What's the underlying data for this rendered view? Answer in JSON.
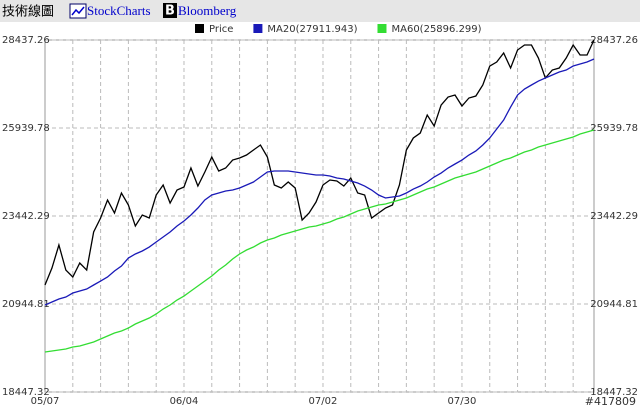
{
  "header": {
    "title": "技術線圖",
    "links": [
      "StockCharts",
      "Bloomberg"
    ]
  },
  "watermark": "#417809",
  "chart_data": {
    "type": "line",
    "categories": [
      "05/07",
      null,
      null,
      null,
      null,
      null,
      null,
      null,
      null,
      null,
      null,
      null,
      null,
      null,
      null,
      null,
      null,
      null,
      null,
      null,
      "06/04",
      null,
      null,
      null,
      null,
      null,
      null,
      null,
      null,
      null,
      null,
      null,
      null,
      null,
      null,
      null,
      null,
      null,
      null,
      null,
      "07/02",
      null,
      null,
      null,
      null,
      null,
      null,
      null,
      null,
      null,
      null,
      null,
      null,
      null,
      null,
      null,
      null,
      null,
      null,
      null,
      "07/30",
      null,
      null,
      null,
      null,
      null,
      null,
      null,
      null,
      null,
      null,
      null,
      null,
      null,
      null,
      null,
      null,
      null,
      null,
      null
    ],
    "series": [
      {
        "name": "Price",
        "color": "#000000",
        "values": [
          21484,
          21966,
          22619,
          21909,
          21711,
          22108,
          21909,
          22988,
          23385,
          23896,
          23527,
          24095,
          23754,
          23158,
          23470,
          23385,
          24038,
          24322,
          23811,
          24180,
          24265,
          24804,
          24293,
          24691,
          25116,
          24719,
          24804,
          25031,
          25088,
          25173,
          25315,
          25457,
          25116,
          24322,
          24237,
          24407,
          24237,
          23328,
          23527,
          23839,
          24322,
          24464,
          24435,
          24293,
          24520,
          24095,
          24038,
          23385,
          23527,
          23669,
          23754,
          24322,
          25315,
          25656,
          25797,
          26308,
          25996,
          26592,
          26819,
          26876,
          26564,
          26791,
          26847,
          27160,
          27699,
          27812,
          28068,
          27642,
          28153,
          28295,
          28295,
          27926,
          27358,
          27585,
          27642,
          27926,
          28295,
          28011,
          28011,
          28437
        ]
      },
      {
        "name": "MA20(27911.943)",
        "color": "#1a1ab8",
        "values": [
          20916,
          21001,
          21087,
          21143,
          21257,
          21314,
          21370,
          21484,
          21597,
          21711,
          21881,
          22023,
          22250,
          22364,
          22449,
          22562,
          22704,
          22846,
          22988,
          23158,
          23300,
          23470,
          23669,
          23896,
          24038,
          24095,
          24152,
          24180,
          24237,
          24322,
          24407,
          24549,
          24691,
          24719,
          24719,
          24719,
          24691,
          24662,
          24634,
          24605,
          24605,
          24577,
          24520,
          24492,
          24435,
          24378,
          24293,
          24180,
          24038,
          23953,
          23981,
          24009,
          24095,
          24208,
          24293,
          24407,
          24549,
          24662,
          24804,
          24918,
          25031,
          25173,
          25287,
          25457,
          25656,
          25911,
          26166,
          26535,
          26876,
          27046,
          27160,
          27273,
          27358,
          27443,
          27529,
          27585,
          27699,
          27756,
          27812,
          27898
        ]
      },
      {
        "name": "MA60(25896.299)",
        "color": "#33dd33",
        "values": [
          19582,
          19611,
          19639,
          19667,
          19724,
          19752,
          19809,
          19866,
          19951,
          20036,
          20121,
          20178,
          20263,
          20377,
          20462,
          20547,
          20661,
          20803,
          20916,
          21058,
          21171,
          21314,
          21455,
          21597,
          21739,
          21909,
          22051,
          22222,
          22364,
          22477,
          22562,
          22676,
          22761,
          22818,
          22903,
          22960,
          23016,
          23073,
          23130,
          23158,
          23215,
          23272,
          23357,
          23414,
          23499,
          23584,
          23641,
          23698,
          23754,
          23783,
          23839,
          23896,
          23953,
          24038,
          24123,
          24208,
          24265,
          24350,
          24435,
          24520,
          24577,
          24634,
          24691,
          24776,
          24861,
          24946,
          25031,
          25088,
          25173,
          25258,
          25315,
          25400,
          25457,
          25514,
          25570,
          25627,
          25684,
          25769,
          25826,
          25883
        ]
      }
    ],
    "ylim": [
      18447.32,
      28437.26
    ],
    "yticks": [
      18447.32,
      20944.81,
      23442.29,
      25939.78,
      28437.26
    ],
    "grid": true
  }
}
